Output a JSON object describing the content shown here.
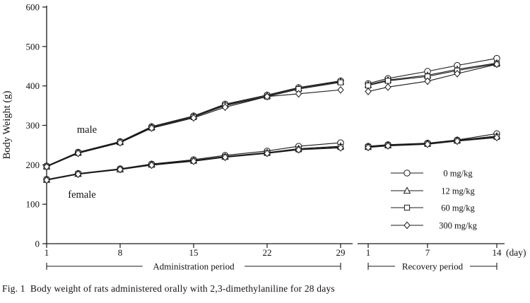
{
  "figure": {
    "caption": "Fig. 1  Body weight of rats administered orally with 2,3-dimethylaniline for 28 days",
    "male_label": "male",
    "female_label": "female",
    "day_unit_label": "(day)",
    "colors": {
      "line": "#1a1a1a",
      "marker_fill": "#ffffff",
      "background": "#ffffff",
      "text": "#111111"
    }
  },
  "chart_data": {
    "type": "line",
    "ylabel": "Body Weight (g)",
    "ylim": [
      0,
      600
    ],
    "yticks": [
      0,
      100,
      200,
      300,
      400,
      500,
      600
    ],
    "grid": false,
    "legend": {
      "position": "right-middle",
      "entries": [
        {
          "label": "0 mg/kg",
          "marker": "circle"
        },
        {
          "label": "12 mg/kg",
          "marker": "triangle"
        },
        {
          "label": "60 mg/kg",
          "marker": "square"
        },
        {
          "label": "300 mg/kg",
          "marker": "diamond"
        }
      ]
    },
    "panels": [
      {
        "id": "administration",
        "bracket_label": "Administration period",
        "xticks": [
          1,
          8,
          15,
          22,
          29
        ],
        "x": [
          1,
          4,
          8,
          11,
          15,
          18,
          22,
          25,
          29
        ],
        "series": [
          {
            "group": "male",
            "dose": "0 mg/kg",
            "marker": "circle",
            "values": [
              197,
              232,
              259,
              297,
              324,
              354,
              377,
              396,
              413
            ]
          },
          {
            "group": "male",
            "dose": "12 mg/kg",
            "marker": "triangle",
            "values": [
              196,
              231,
              258,
              296,
              323,
              352,
              375,
              394,
              411
            ]
          },
          {
            "group": "male",
            "dose": "60 mg/kg",
            "marker": "square",
            "values": [
              195,
              230,
              257,
              294,
              321,
              350,
              373,
              392,
              409
            ]
          },
          {
            "group": "male",
            "dose": "300 mg/kg",
            "marker": "diamond",
            "values": [
              195,
              229,
              256,
              293,
              319,
              346,
              373,
              380,
              390
            ]
          },
          {
            "group": "female",
            "dose": "0 mg/kg",
            "marker": "circle",
            "values": [
              163,
              178,
              190,
              202,
              213,
              224,
              235,
              247,
              256
            ]
          },
          {
            "group": "female",
            "dose": "12 mg/kg",
            "marker": "triangle",
            "values": [
              162,
              177,
              189,
              201,
              211,
              221,
              231,
              241,
              247
            ]
          },
          {
            "group": "female",
            "dose": "60 mg/kg",
            "marker": "square",
            "values": [
              162,
              177,
              188,
              200,
              210,
              220,
              230,
              239,
              245
            ]
          },
          {
            "group": "female",
            "dose": "300 mg/kg",
            "marker": "diamond",
            "values": [
              161,
              176,
              188,
              199,
              209,
              219,
              229,
              238,
              243
            ]
          }
        ]
      },
      {
        "id": "recovery",
        "bracket_label": "Recovery period",
        "xticks": [
          1,
          7,
          14
        ],
        "x": [
          1,
          3,
          7,
          10,
          14
        ],
        "series": [
          {
            "group": "male",
            "dose": "0 mg/kg",
            "marker": "circle",
            "values": [
              406,
              419,
              437,
              452,
              470
            ]
          },
          {
            "group": "male",
            "dose": "12 mg/kg",
            "marker": "triangle",
            "values": [
              403,
              415,
              427,
              442,
              458
            ]
          },
          {
            "group": "male",
            "dose": "60 mg/kg",
            "marker": "square",
            "values": [
              401,
              413,
              424,
              439,
              456
            ]
          },
          {
            "group": "male",
            "dose": "300 mg/kg",
            "marker": "diamond",
            "values": [
              386,
              397,
              412,
              431,
              455
            ]
          },
          {
            "group": "female",
            "dose": "0 mg/kg",
            "marker": "circle",
            "values": [
              247,
              251,
              255,
              263,
              279
            ]
          },
          {
            "group": "female",
            "dose": "12 mg/kg",
            "marker": "triangle",
            "values": [
              246,
              250,
              254,
              262,
              273
            ]
          },
          {
            "group": "female",
            "dose": "60 mg/kg",
            "marker": "square",
            "values": [
              245,
              249,
              253,
              261,
              271
            ]
          },
          {
            "group": "female",
            "dose": "300 mg/kg",
            "marker": "diamond",
            "values": [
              244,
              248,
              252,
              260,
              269
            ]
          }
        ]
      }
    ]
  }
}
